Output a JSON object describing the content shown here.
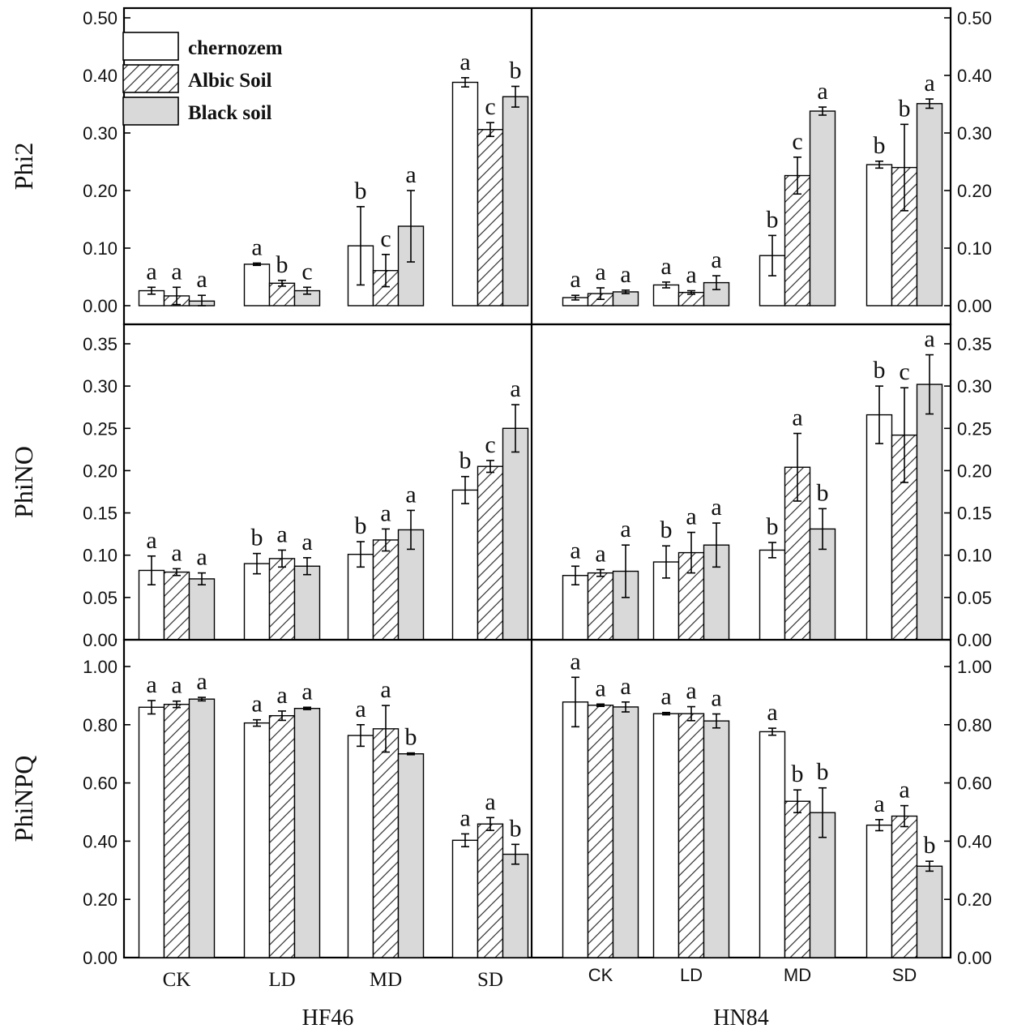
{
  "chart_data": {
    "type": "bar",
    "groups": [
      "HF46",
      "HN84"
    ],
    "categories": [
      "CK",
      "LD",
      "MD",
      "SD"
    ],
    "series": [
      {
        "name": "chernozem",
        "color": "#ffffff",
        "pattern": "none"
      },
      {
        "name": "Albic Soil",
        "color": "#ffffff",
        "pattern": "hatch"
      },
      {
        "name": "Black soil",
        "color": "#d9d9d9",
        "pattern": "none"
      }
    ],
    "legend_position": "top-left",
    "rows": [
      {
        "ylabel": "Phi2",
        "ylim": [
          0,
          0.5
        ],
        "ticks": [
          "0.00",
          "0.10",
          "0.20",
          "0.30",
          "0.40",
          "0.50"
        ],
        "tick_values": [
          0,
          0.1,
          0.2,
          0.3,
          0.4,
          0.5
        ],
        "panels": [
          {
            "values": [
              [
                0.026,
                0.017,
                0.008
              ],
              [
                0.072,
                0.039,
                0.026
              ],
              [
                0.104,
                0.061,
                0.138
              ],
              [
                0.388,
                0.306,
                0.363
              ]
            ],
            "errors": [
              [
                0.006,
                0.015,
                0.01
              ],
              [
                0.002,
                0.005,
                0.006
              ],
              [
                0.068,
                0.028,
                0.062
              ],
              [
                0.008,
                0.012,
                0.018
              ]
            ],
            "labels": [
              [
                "a",
                "a",
                "a"
              ],
              [
                "a",
                "b",
                "c"
              ],
              [
                "b",
                "c",
                "a"
              ],
              [
                "a",
                "c",
                "b"
              ]
            ]
          },
          {
            "values": [
              [
                0.014,
                0.021,
                0.024
              ],
              [
                0.036,
                0.023,
                0.04
              ],
              [
                0.087,
                0.226,
                0.338
              ],
              [
                0.245,
                0.24,
                0.351
              ]
            ],
            "errors": [
              [
                0.004,
                0.01,
                0.003
              ],
              [
                0.005,
                0.003,
                0.012
              ],
              [
                0.035,
                0.032,
                0.007
              ],
              [
                0.006,
                0.075,
                0.008
              ]
            ],
            "labels": [
              [
                "a",
                "a",
                "a"
              ],
              [
                "a",
                "a",
                "a"
              ],
              [
                "b",
                "c",
                "a"
              ],
              [
                "b",
                "b",
                "a"
              ]
            ]
          }
        ]
      },
      {
        "ylabel": "PhiNO",
        "ylim": [
          0,
          0.35
        ],
        "ticks": [
          "0.00",
          "0.05",
          "0.10",
          "0.15",
          "0.20",
          "0.25",
          "0.30",
          "0.35"
        ],
        "tick_values": [
          0,
          0.05,
          0.1,
          0.15,
          0.2,
          0.25,
          0.3,
          0.35
        ],
        "panels": [
          {
            "values": [
              [
                0.082,
                0.08,
                0.072
              ],
              [
                0.09,
                0.096,
                0.087
              ],
              [
                0.101,
                0.118,
                0.13
              ],
              [
                0.177,
                0.205,
                0.25
              ]
            ],
            "errors": [
              [
                0.017,
                0.004,
                0.007
              ],
              [
                0.012,
                0.01,
                0.01
              ],
              [
                0.015,
                0.013,
                0.023
              ],
              [
                0.016,
                0.007,
                0.028
              ]
            ],
            "labels": [
              [
                "a",
                "a",
                "a"
              ],
              [
                "b",
                "a",
                "a"
              ],
              [
                "b",
                "a",
                "a"
              ],
              [
                "b",
                "c",
                "a"
              ]
            ]
          },
          {
            "values": [
              [
                0.076,
                0.079,
                0.081
              ],
              [
                0.092,
                0.103,
                0.112
              ],
              [
                0.106,
                0.204,
                0.131
              ],
              [
                0.266,
                0.242,
                0.302
              ]
            ],
            "errors": [
              [
                0.011,
                0.004,
                0.031
              ],
              [
                0.019,
                0.024,
                0.026
              ],
              [
                0.009,
                0.04,
                0.024
              ],
              [
                0.034,
                0.056,
                0.035
              ]
            ],
            "labels": [
              [
                "a",
                "a",
                "a"
              ],
              [
                "b",
                "a",
                "a"
              ],
              [
                "b",
                "a",
                "b"
              ],
              [
                "b",
                "c",
                "a"
              ]
            ]
          }
        ]
      },
      {
        "ylabel": "PhiNPQ",
        "ylim": [
          0,
          1.0
        ],
        "ticks": [
          "0.00",
          "0.20",
          "0.40",
          "0.60",
          "0.80",
          "1.00"
        ],
        "tick_values": [
          0,
          0.2,
          0.4,
          0.6,
          0.8,
          1.0
        ],
        "panels": [
          {
            "values": [
              [
                0.86,
                0.87,
                0.888
              ],
              [
                0.806,
                0.831,
                0.856
              ],
              [
                0.763,
                0.786,
                0.7
              ],
              [
                0.403,
                0.459,
                0.355
              ]
            ],
            "errors": [
              [
                0.023,
                0.011,
                0.006
              ],
              [
                0.011,
                0.016,
                0.004
              ],
              [
                0.037,
                0.08,
                0.003
              ],
              [
                0.022,
                0.022,
                0.034
              ]
            ],
            "labels": [
              [
                "a",
                "a",
                "a"
              ],
              [
                "a",
                "a",
                "a"
              ],
              [
                "a",
                "a",
                "b"
              ],
              [
                "a",
                "a",
                "b"
              ]
            ]
          },
          {
            "values": [
              [
                0.878,
                0.867,
                0.861
              ],
              [
                0.838,
                0.838,
                0.813
              ],
              [
                0.776,
                0.537,
                0.498
              ],
              [
                0.455,
                0.486,
                0.314
              ]
            ],
            "errors": [
              [
                0.085,
                0.004,
                0.017
              ],
              [
                0.004,
                0.024,
                0.024
              ],
              [
                0.012,
                0.039,
                0.085
              ],
              [
                0.019,
                0.036,
                0.017
              ]
            ],
            "labels": [
              [
                "a",
                "a",
                "a"
              ],
              [
                "a",
                "a",
                "a"
              ],
              [
                "a",
                "b",
                "b"
              ],
              [
                "a",
                "a",
                "b"
              ]
            ]
          }
        ]
      }
    ]
  }
}
